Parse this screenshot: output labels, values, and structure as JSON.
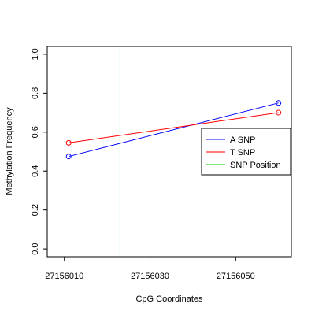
{
  "chart_data": {
    "type": "line",
    "xlabel": "CpG Coordinates",
    "ylabel": "Methylation Frequency",
    "xlim": [
      27156006,
      27156063
    ],
    "ylim": [
      -0.04,
      1.04
    ],
    "x_ticks": [
      27156010,
      27156030,
      27156050
    ],
    "y_ticks": [
      0.0,
      0.2,
      0.4,
      0.6,
      0.8,
      1.0
    ],
    "x_tick_labels": [
      "27156010",
      "27156030",
      "27156050"
    ],
    "y_tick_labels": [
      "0.0",
      "0.2",
      "0.4",
      "0.6",
      "0.8",
      "1.0"
    ],
    "grid": false,
    "legend_position": "right",
    "series": [
      {
        "name": "A SNP",
        "color": "#0000ff",
        "x": [
          27156011,
          27156060
        ],
        "y": [
          0.475,
          0.75
        ]
      },
      {
        "name": "T SNP",
        "color": "#ff0000",
        "x": [
          27156011,
          27156060
        ],
        "y": [
          0.545,
          0.7
        ]
      }
    ],
    "snp_position": {
      "name": "SNP Position",
      "color": "#00cc00",
      "x": 27156023
    }
  }
}
